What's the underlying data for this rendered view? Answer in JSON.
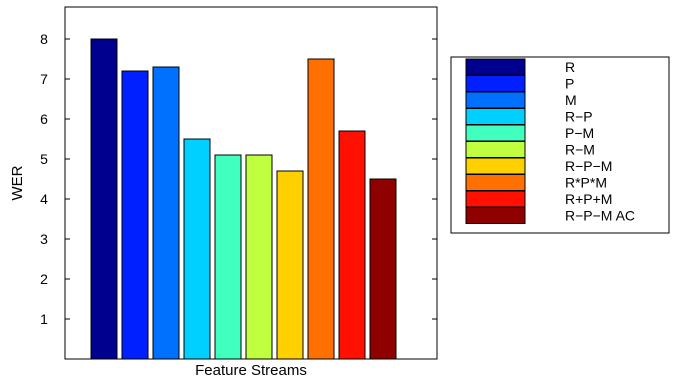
{
  "chart_data": {
    "type": "bar",
    "title": "",
    "xlabel": "Feature Streams",
    "ylabel": "WER",
    "ylim": [
      0,
      8.8
    ],
    "yticks": [
      1,
      2,
      3,
      4,
      5,
      6,
      7,
      8
    ],
    "grid": false,
    "legend_position": "right",
    "series": [
      {
        "name": "R",
        "value": 8.0,
        "color": "#00008f"
      },
      {
        "name": "P",
        "value": 7.2,
        "color": "#0020ff"
      },
      {
        "name": "M",
        "value": 7.3,
        "color": "#0070ff"
      },
      {
        "name": "R−P",
        "value": 5.5,
        "color": "#00d0ff"
      },
      {
        "name": "P−M",
        "value": 5.1,
        "color": "#40ffbf"
      },
      {
        "name": "R−M",
        "value": 5.1,
        "color": "#bfff40"
      },
      {
        "name": "R−P−M",
        "value": 4.7,
        "color": "#ffd000"
      },
      {
        "name": "R*P*M",
        "value": 7.5,
        "color": "#ff7000"
      },
      {
        "name": "R+P+M",
        "value": 5.7,
        "color": "#ff1000"
      },
      {
        "name": "R−P−M AC",
        "value": 4.5,
        "color": "#8f0000"
      }
    ]
  }
}
